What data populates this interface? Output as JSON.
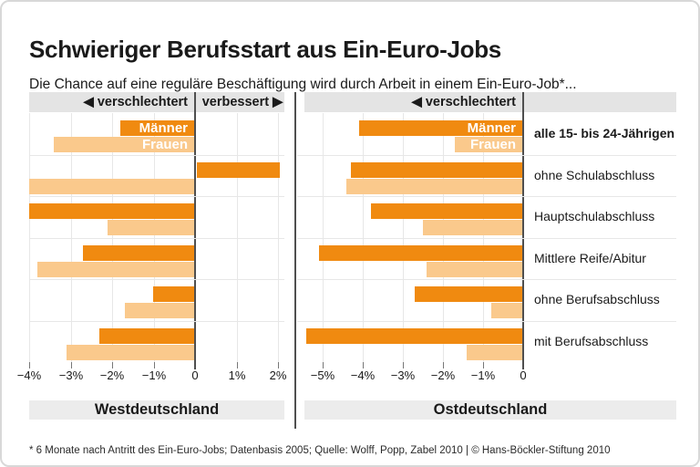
{
  "header": {
    "title": "Schwieriger Berufsstart aus Ein-Euro-Jobs",
    "subtitle": "Die Chance auf eine reguläre Beschäftigung wird durch Arbeit in einem Ein-Euro-Job*..."
  },
  "footer": {
    "note": "* 6 Monate nach Antritt des Ein-Euro-Jobs; Datenbasis 2005; Quelle: Wolff, Popp, Zabel 2010 | © Hans-Böckler-Stiftung 2010"
  },
  "colors": {
    "maenner": "#F08A10",
    "frauen": "#FAC98C",
    "band_gray": "#E4E4E4",
    "bottom_band_gray": "#ECECEC",
    "axis_dark": "#4F4F4F",
    "grid": "#E7E7E7"
  },
  "chart_data": {
    "type": "bar",
    "orientation": "horizontal",
    "unit": "%",
    "grid": true,
    "categories": [
      "alle 15- bis 24-Jährigen",
      "ohne Schulabschluss",
      "Hauptschulabschluss",
      "Mittlere Reife/Abitur",
      "ohne Berufsabschluss",
      "mit Berufsabschluss"
    ],
    "emphasized_category_index": 0,
    "panels": [
      {
        "title": "Westdeutschland",
        "direction_labels": {
          "left": "◀ verschlechtert",
          "right": "verbessert ▶"
        },
        "axis": {
          "min": -4.0,
          "max": 2.2,
          "tick_values": [
            -4,
            -3,
            -2,
            -1,
            0,
            1,
            2
          ],
          "tick_labels": [
            "−4%",
            "−3%",
            "−2%",
            "−1%",
            "0",
            "1%",
            "2%"
          ]
        },
        "series": [
          {
            "name": "Männer",
            "color": "#F08A10",
            "values": [
              -1.8,
              2.0,
              -4.0,
              -2.7,
              -1.0,
              -2.3
            ]
          },
          {
            "name": "Frauen",
            "color": "#FAC98C",
            "values": [
              -3.4,
              -4.0,
              -2.1,
              -3.8,
              -1.7,
              -3.1
            ]
          }
        ]
      },
      {
        "title": "Ostdeutschland",
        "direction_labels": {
          "left": "◀ verschlechtert"
        },
        "axis": {
          "min": -5.7,
          "max": 0,
          "tick_values": [
            -5,
            -4,
            -3,
            -2,
            -1,
            0
          ],
          "tick_labels": [
            "−5%",
            "−4%",
            "−3%",
            "−2%",
            "−1%",
            "0"
          ]
        },
        "series": [
          {
            "name": "Männer",
            "color": "#F08A10",
            "values": [
              -4.1,
              -4.3,
              -3.8,
              -5.1,
              -2.7,
              -5.4
            ]
          },
          {
            "name": "Frauen",
            "color": "#FAC98C",
            "values": [
              -1.7,
              -4.4,
              -2.5,
              -2.4,
              -0.8,
              -1.4
            ]
          }
        ]
      }
    ]
  }
}
